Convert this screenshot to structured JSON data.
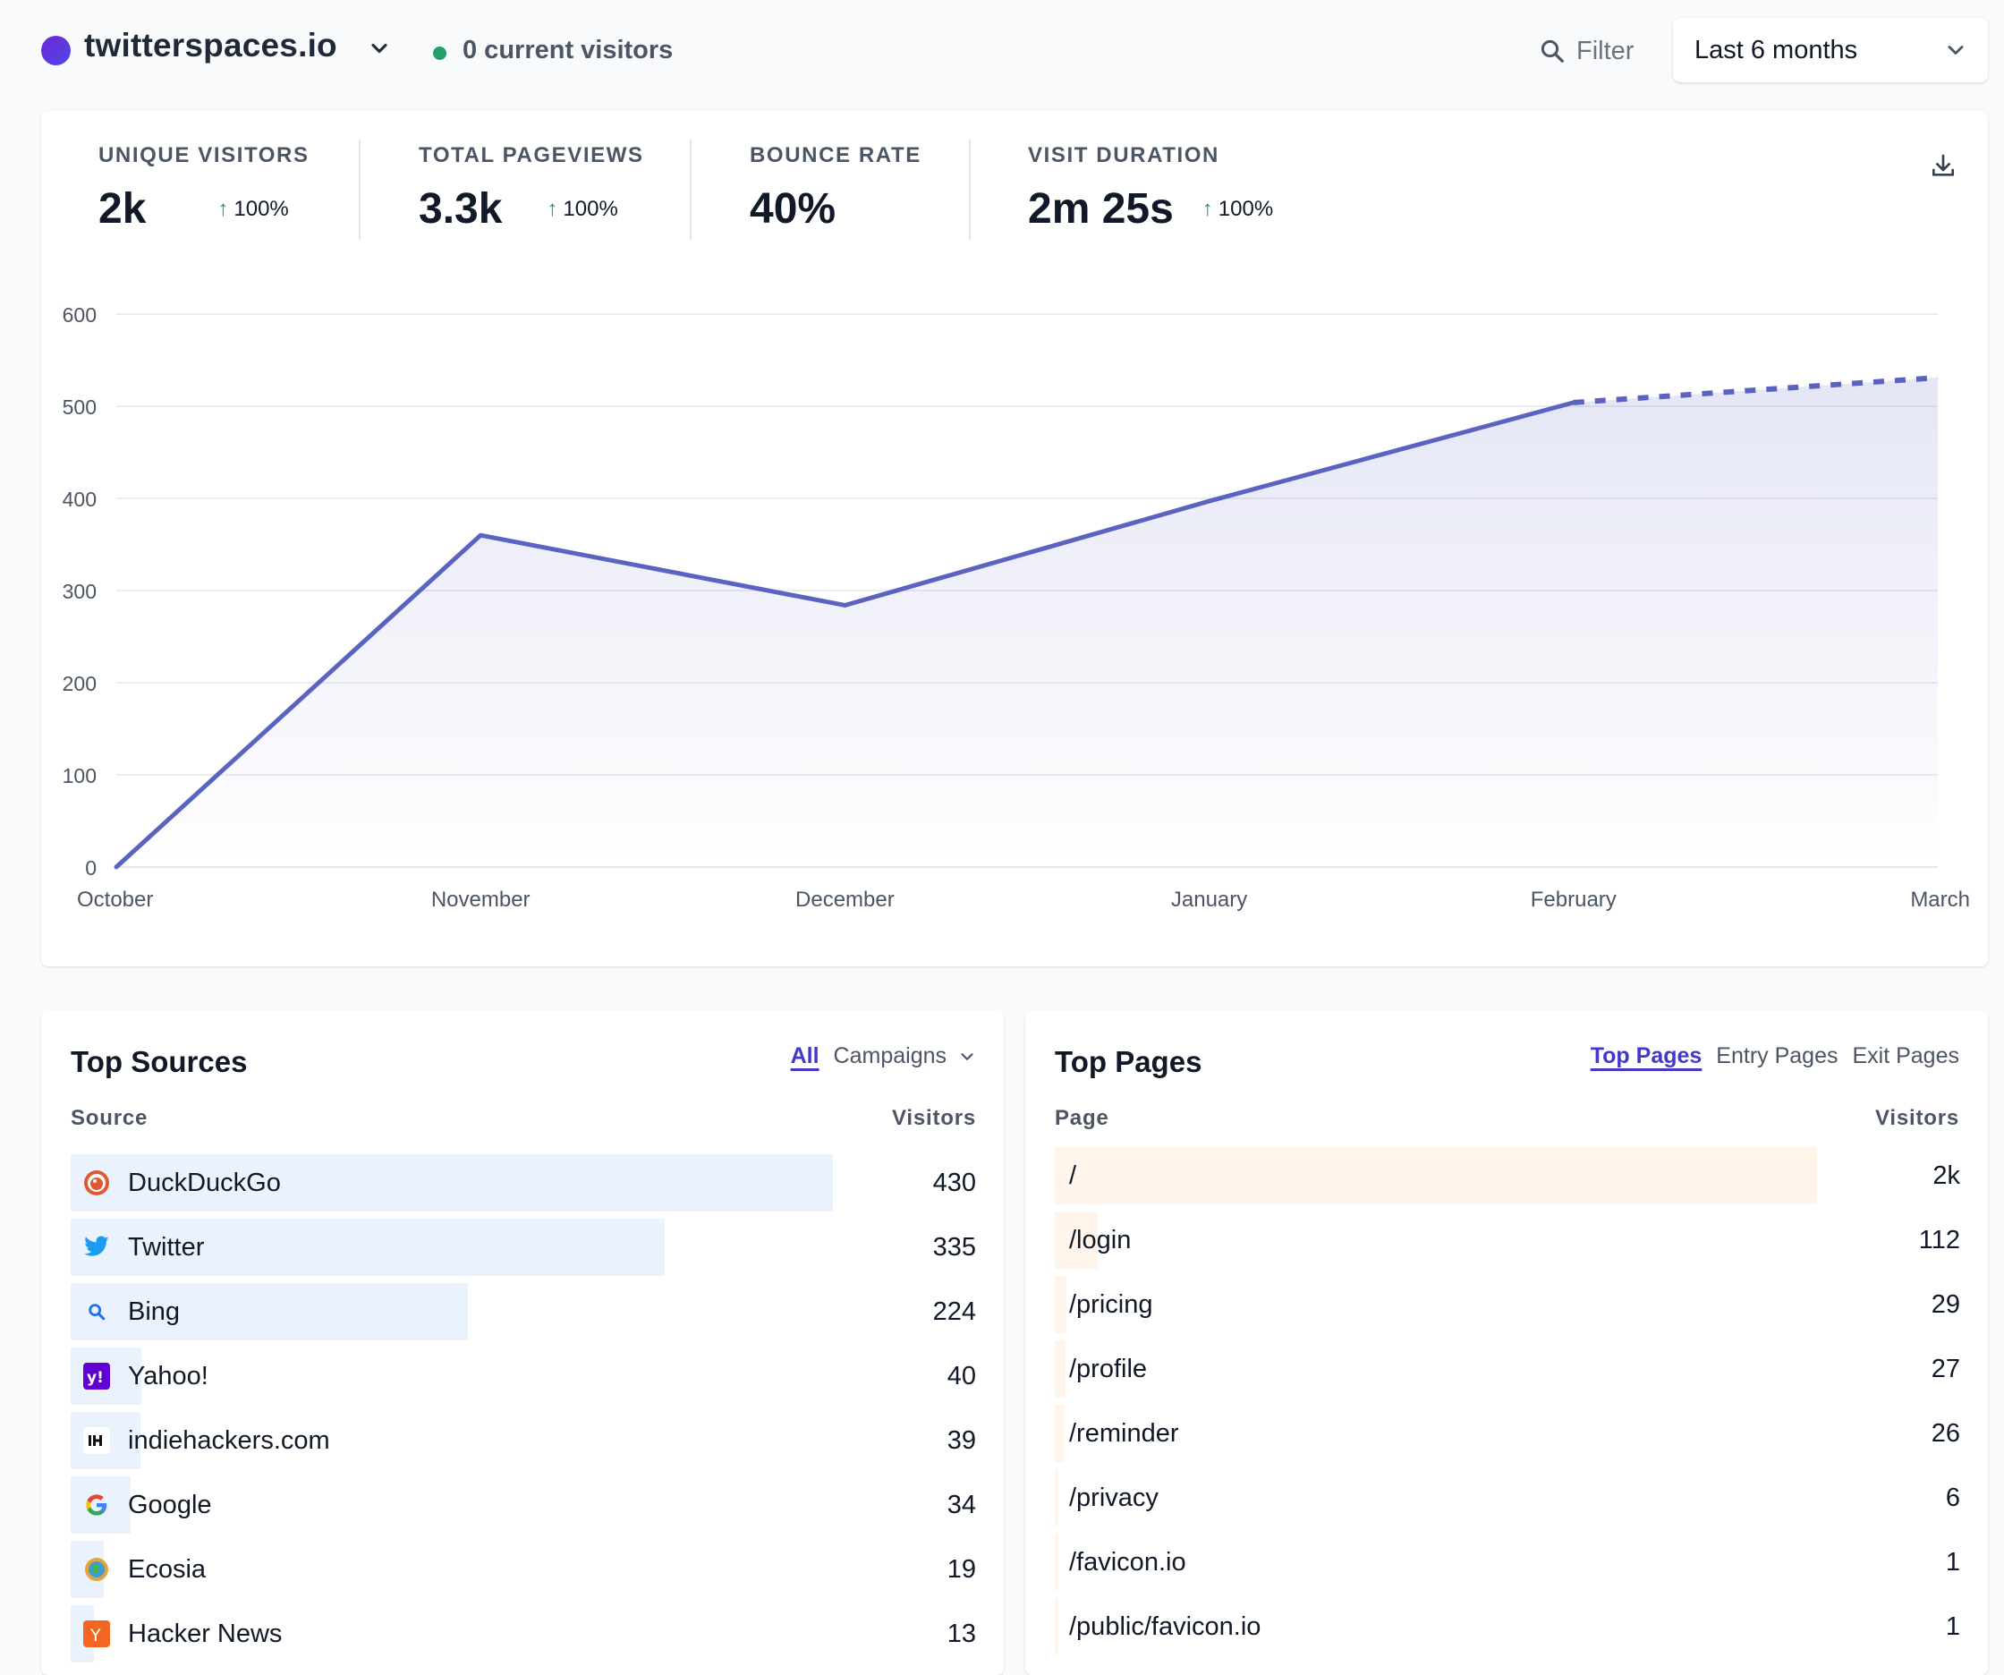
{
  "header": {
    "site_name": "twitterspaces.io",
    "current_visitors": "0 current visitors",
    "filter_label": "Filter",
    "period_label": "Last 6 months"
  },
  "stats": [
    {
      "label": "UNIQUE VISITORS",
      "value": "2k",
      "change": "100%"
    },
    {
      "label": "TOTAL PAGEVIEWS",
      "value": "3.3k",
      "change": "100%"
    },
    {
      "label": "BOUNCE RATE",
      "value": "40%",
      "change": ""
    },
    {
      "label": "VISIT DURATION",
      "value": "2m 25s",
      "change": "100%"
    }
  ],
  "chart_data": {
    "type": "area",
    "x": [
      "October",
      "November",
      "December",
      "January",
      "February",
      "March"
    ],
    "values": [
      0,
      360,
      284,
      397,
      504,
      531
    ],
    "incomplete_last_segment": true,
    "ylim": [
      0,
      600
    ],
    "yticks": [
      0,
      100,
      200,
      300,
      400,
      500,
      600
    ],
    "grid": true,
    "colors": {
      "line": "#5b63c2",
      "fill": "#e5e7f5",
      "grid": "#e5e7eb"
    }
  },
  "top_sources": {
    "title": "Top Sources",
    "tab_all": "All",
    "tab_campaigns": "Campaigns",
    "col_source": "Source",
    "col_visitors": "Visitors",
    "bar_color": "#eaf2fd",
    "rows": [
      {
        "name": "DuckDuckGo",
        "value": "430",
        "fraction": 1.0,
        "icon": "duckduckgo-icon"
      },
      {
        "name": "Twitter",
        "value": "335",
        "fraction": 0.779,
        "icon": "twitter-icon"
      },
      {
        "name": "Bing",
        "value": "224",
        "fraction": 0.521,
        "icon": "bing-icon"
      },
      {
        "name": "Yahoo!",
        "value": "40",
        "fraction": 0.093,
        "icon": "yahoo-icon"
      },
      {
        "name": "indiehackers.com",
        "value": "39",
        "fraction": 0.091,
        "icon": "indiehackers-icon"
      },
      {
        "name": "Google",
        "value": "34",
        "fraction": 0.079,
        "icon": "google-icon"
      },
      {
        "name": "Ecosia",
        "value": "19",
        "fraction": 0.044,
        "icon": "ecosia-icon"
      },
      {
        "name": "Hacker News",
        "value": "13",
        "fraction": 0.03,
        "icon": "hackernews-icon"
      }
    ]
  },
  "top_pages": {
    "title": "Top Pages",
    "tab_top": "Top Pages",
    "tab_entry": "Entry Pages",
    "tab_exit": "Exit Pages",
    "col_page": "Page",
    "col_visitors": "Visitors",
    "bar_color": "#fff5ea",
    "rows": [
      {
        "name": "/",
        "value": "2k",
        "fraction": 1.0
      },
      {
        "name": "/login",
        "value": "112",
        "fraction": 0.056
      },
      {
        "name": "/pricing",
        "value": "29",
        "fraction": 0.015
      },
      {
        "name": "/profile",
        "value": "27",
        "fraction": 0.014
      },
      {
        "name": "/reminder",
        "value": "26",
        "fraction": 0.013
      },
      {
        "name": "/privacy",
        "value": "6",
        "fraction": 0.003
      },
      {
        "name": "/favicon.io",
        "value": "1",
        "fraction": 0.0005
      },
      {
        "name": "/public/favicon.io",
        "value": "1",
        "fraction": 0.0005
      }
    ]
  }
}
